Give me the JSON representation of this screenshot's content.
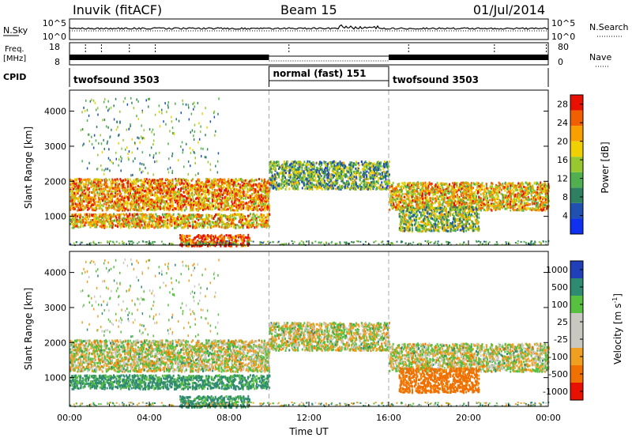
{
  "header": {
    "station": "Inuvik (fitACF)",
    "beam": "Beam 15",
    "date": "01/Jul/2014"
  },
  "noise_panel": {
    "left_label": "N.Sky",
    "left_ticks": [
      "10^5",
      "10^0"
    ],
    "right_ticks": [
      "10^5",
      "10^0"
    ],
    "right_label": "N.Search"
  },
  "freq_panel": {
    "left_label_1": "Freq.",
    "left_label_2": "[MHz]",
    "left_ticks": [
      "18",
      "8"
    ],
    "right_ticks": [
      "80",
      "0"
    ],
    "right_label": "Nave"
  },
  "cpid_panel": {
    "label": "CPID",
    "segments": [
      {
        "name": "twofsound 3503",
        "start_hour": 0,
        "end_hour": 10
      },
      {
        "name": "normal (fast) 151",
        "start_hour": 10,
        "end_hour": 16
      },
      {
        "name": "twofsound 3503",
        "start_hour": 16,
        "end_hour": 24
      }
    ]
  },
  "x_axis": {
    "label": "Time UT",
    "ticks": [
      "00:00",
      "04:00",
      "08:00",
      "12:00",
      "16:00",
      "20:00",
      "00:00"
    ],
    "range_hours": [
      0,
      24
    ]
  },
  "power_panel": {
    "ylabel": "Slant Range [km]",
    "yticks": [
      "1000",
      "2000",
      "3000",
      "4000"
    ],
    "colorbar_label": "Power [dB]",
    "colorbar_ticks": [
      "4",
      "8",
      "12",
      "16",
      "20",
      "24",
      "28"
    ],
    "colors": [
      "#1030f0",
      "#2050b0",
      "#2e8060",
      "#50b050",
      "#98c830",
      "#f0d000",
      "#f8a000",
      "#f06000",
      "#e81000"
    ]
  },
  "velocity_panel": {
    "ylabel": "Slant Range [km]",
    "yticks": [
      "1000",
      "2000",
      "3000",
      "4000"
    ],
    "colorbar_label": "Velocity [m s^-1]",
    "colorbar_ticks": [
      "1000",
      "500",
      "100",
      "25",
      "-25",
      "-100",
      "-500",
      "-1000"
    ],
    "colors": [
      "#2040b8",
      "#2e8a70",
      "#58c040",
      "#c8c8c0",
      "#c8c8c0",
      "#f0a020",
      "#f07000",
      "#e81000"
    ]
  },
  "chart_data": {
    "type": "heatmap",
    "title": "Inuvik (fitACF)   Beam 15   01/Jul/2014",
    "xlabel": "Time UT",
    "ylabel": "Slant Range [km]",
    "xlim_hours": [
      0,
      24
    ],
    "ylim_km": [
      180,
      4600
    ],
    "power_db_range": [
      0,
      30
    ],
    "velocity_range": [
      -1000,
      1000
    ],
    "scatter_regions": [
      {
        "hours": [
          0,
          10
        ],
        "range_km": [
          1200,
          2100
        ],
        "power_db": 22,
        "velocity": 0
      },
      {
        "hours": [
          0,
          10
        ],
        "range_km": [
          700,
          1100
        ],
        "power_db": 20,
        "velocity": 150
      },
      {
        "hours": [
          5.5,
          9
        ],
        "range_km": [
          180,
          500
        ],
        "power_db": 28,
        "velocity": 150
      },
      {
        "hours": [
          10,
          16
        ],
        "range_km": [
          1800,
          2600
        ],
        "power_db": 12,
        "velocity": 0
      },
      {
        "hours": [
          16,
          24
        ],
        "range_km": [
          1200,
          2000
        ],
        "power_db": 20,
        "velocity": 0
      },
      {
        "hours": [
          16.5,
          20.5
        ],
        "range_km": [
          600,
          1300
        ],
        "power_db": 14,
        "velocity": -200
      }
    ]
  }
}
